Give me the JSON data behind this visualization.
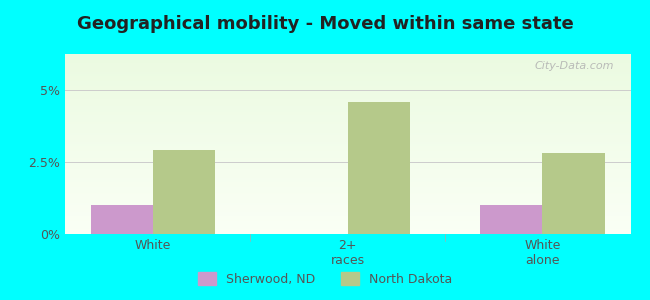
{
  "title": "Geographical mobility - Moved within same state",
  "categories": [
    "White",
    "2+\nraces",
    "White\nalone"
  ],
  "sherwood_values": [
    1.0,
    0.0,
    1.0
  ],
  "nd_values": [
    2.9,
    4.6,
    2.8
  ],
  "sherwood_color": "#cc99cc",
  "nd_color": "#b5c98a",
  "ylim": [
    0,
    6.25
  ],
  "yticks": [
    0,
    2.5,
    5.0
  ],
  "ytick_labels": [
    "0%",
    "2.5%",
    "5%"
  ],
  "background_outer": "#00FFFF",
  "bar_width": 0.32,
  "legend_labels": [
    "Sherwood, ND",
    "North Dakota"
  ],
  "title_fontsize": 13,
  "label_fontsize": 9,
  "tick_fontsize": 9,
  "grid_color": "#cccccc",
  "axis_text_color": "#555555",
  "watermark": "City-Data.com"
}
